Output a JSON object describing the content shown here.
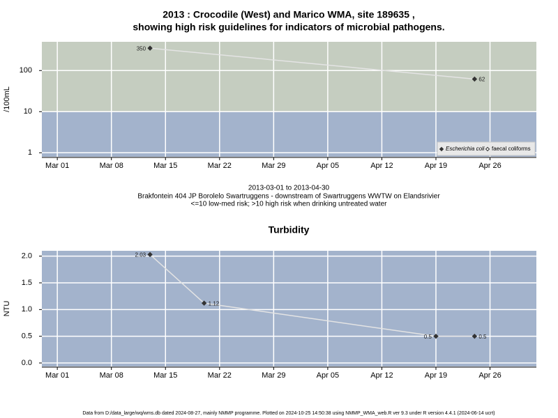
{
  "chart_data": [
    {
      "type": "line",
      "title": [
        "2013 : Crocodile (West) and Marico WMA, site 189635 ,",
        "showing high risk guidelines for indicators of microbial pathogens."
      ],
      "ylabel": "/100mL",
      "caption": [
        "2013-03-01 to 2013-04-30",
        "Brakfontein 404 JP Borolelo Swartruggens - downstream of Swartruggens WWTW on Elandsrivier",
        "<=10 low-med risk; >10 high risk when drinking untreated water"
      ],
      "x": [
        "2013-03-13",
        "2013-04-24"
      ],
      "series": [
        {
          "name": "Escherichia coli",
          "color": "#333333",
          "marker": "filled",
          "values": [
            350,
            62
          ]
        },
        {
          "name": "faecal coliforms",
          "color": "#333333",
          "marker": "open",
          "values": [
            null,
            null
          ]
        }
      ],
      "log_scale": true,
      "ylim": [
        0.8,
        500
      ],
      "yticks": [
        1,
        10,
        100
      ],
      "xlim": [
        "2013-02-27",
        "2013-05-02"
      ],
      "xticks": [
        {
          "value": "2013-03-01",
          "label": "Mar 01"
        },
        {
          "value": "2013-03-08",
          "label": "Mar 08"
        },
        {
          "value": "2013-03-15",
          "label": "Mar 15"
        },
        {
          "value": "2013-03-22",
          "label": "Mar 22"
        },
        {
          "value": "2013-03-29",
          "label": "Mar 29"
        },
        {
          "value": "2013-04-05",
          "label": "Apr 05"
        },
        {
          "value": "2013-04-12",
          "label": "Apr 12"
        },
        {
          "value": "2013-04-19",
          "label": "Apr 19"
        },
        {
          "value": "2013-04-26",
          "label": "Apr 26"
        }
      ],
      "risk_threshold": 10,
      "background": "#a3b3cc",
      "high_risk_color": "#c5cdc0",
      "line_color": "#e4e4e4",
      "grid": true,
      "legend": "bottom right"
    },
    {
      "type": "line",
      "title": [
        "Turbidity"
      ],
      "ylabel": "NTU",
      "x": [
        "2013-03-13",
        "2013-03-20",
        "2013-04-19",
        "2013-04-24"
      ],
      "series": [
        {
          "name": "Turbidity",
          "color": "#333333",
          "marker": "filled",
          "values": [
            2.03,
            1.12,
            0.5,
            0.5
          ]
        }
      ],
      "log_scale": false,
      "ylim": [
        -0.065,
        2.1
      ],
      "yticks": [
        {
          "value": 0,
          "label": "0.0"
        },
        0.5,
        {
          "value": 1,
          "label": "1.0"
        },
        1.5,
        {
          "value": 2,
          "label": "2.0"
        }
      ],
      "xlim": [
        "2013-02-27",
        "2013-05-02"
      ],
      "xticks": [
        {
          "value": "2013-03-01",
          "label": "Mar 01"
        },
        {
          "value": "2013-03-08",
          "label": "Mar 08"
        },
        {
          "value": "2013-03-15",
          "label": "Mar 15"
        },
        {
          "value": "2013-03-22",
          "label": "Mar 22"
        },
        {
          "value": "2013-03-29",
          "label": "Mar 29"
        },
        {
          "value": "2013-04-05",
          "label": "Apr 05"
        },
        {
          "value": "2013-04-12",
          "label": "Apr 12"
        },
        {
          "value": "2013-04-19",
          "label": "Apr 19"
        },
        {
          "value": "2013-04-26",
          "label": "Apr 26"
        }
      ],
      "background": "#a3b3cc",
      "line_color": "#e4e4e4",
      "grid": true
    }
  ],
  "footer": "Data from D:/data_large/wq/wms.db dated 2024-08-27, mainly NMMP programme. Plotted on 2024-10-25 14:50:38 using NMMP_WMA_web.R ver 9.3 under R version 4.4.1 (2024-06-14 ucrt)"
}
